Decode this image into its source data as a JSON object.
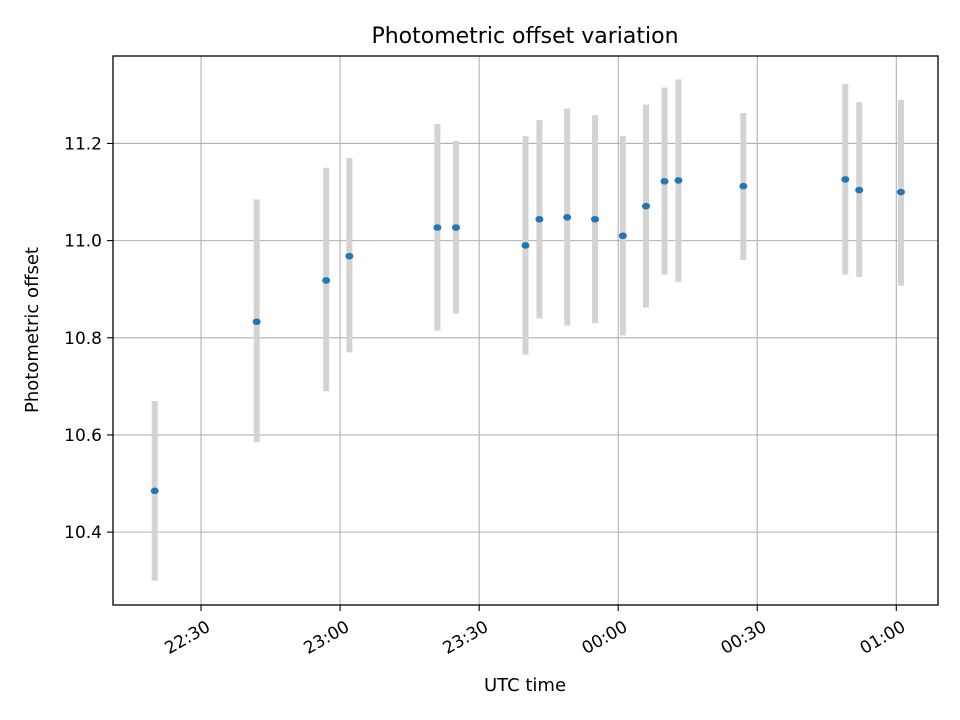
{
  "chart_data": {
    "type": "scatter",
    "title": "Photometric offset variation",
    "xlabel": "UTC time",
    "ylabel": "Photometric offset",
    "x_ticks": [
      "22:30",
      "23:00",
      "23:30",
      "00:00",
      "00:30",
      "01:00"
    ],
    "y_ticks": [
      "10.4",
      "10.6",
      "10.8",
      "11.0",
      "11.2"
    ],
    "x_range": [
      "22:11",
      "01:09"
    ],
    "ylim": [
      10.25,
      11.38
    ],
    "grid": true,
    "colors": {
      "point": "#1f77b4",
      "errorbar": "#d3d3d3",
      "grid": "#b0b0b0"
    },
    "points": [
      {
        "time": "22:20",
        "value": 10.485,
        "err_low": 10.3,
        "err_high": 10.67
      },
      {
        "time": "22:42",
        "value": 10.833,
        "err_low": 10.585,
        "err_high": 11.085
      },
      {
        "time": "22:57",
        "value": 10.918,
        "err_low": 10.69,
        "err_high": 11.15
      },
      {
        "time": "23:02",
        "value": 10.968,
        "err_low": 10.77,
        "err_high": 11.17
      },
      {
        "time": "23:21",
        "value": 11.027,
        "err_low": 10.815,
        "err_high": 11.24
      },
      {
        "time": "23:25",
        "value": 11.027,
        "err_low": 10.85,
        "err_high": 11.205
      },
      {
        "time": "23:40",
        "value": 10.99,
        "err_low": 10.765,
        "err_high": 11.215
      },
      {
        "time": "23:43",
        "value": 11.044,
        "err_low": 10.84,
        "err_high": 11.248
      },
      {
        "time": "23:49",
        "value": 11.048,
        "err_low": 10.825,
        "err_high": 11.272
      },
      {
        "time": "23:55",
        "value": 11.044,
        "err_low": 10.83,
        "err_high": 11.258
      },
      {
        "time": "00:01",
        "value": 11.01,
        "err_low": 10.805,
        "err_high": 11.215
      },
      {
        "time": "00:06",
        "value": 11.071,
        "err_low": 10.862,
        "err_high": 11.28
      },
      {
        "time": "00:10",
        "value": 11.122,
        "err_low": 10.93,
        "err_high": 11.315
      },
      {
        "time": "00:13",
        "value": 11.124,
        "err_low": 10.915,
        "err_high": 11.332
      },
      {
        "time": "00:27",
        "value": 11.112,
        "err_low": 10.96,
        "err_high": 11.263
      },
      {
        "time": "00:49",
        "value": 11.126,
        "err_low": 10.93,
        "err_high": 11.322
      },
      {
        "time": "00:52",
        "value": 11.104,
        "err_low": 10.925,
        "err_high": 11.285
      },
      {
        "time": "01:01",
        "value": 11.1,
        "err_low": 10.907,
        "err_high": 11.29
      }
    ]
  }
}
